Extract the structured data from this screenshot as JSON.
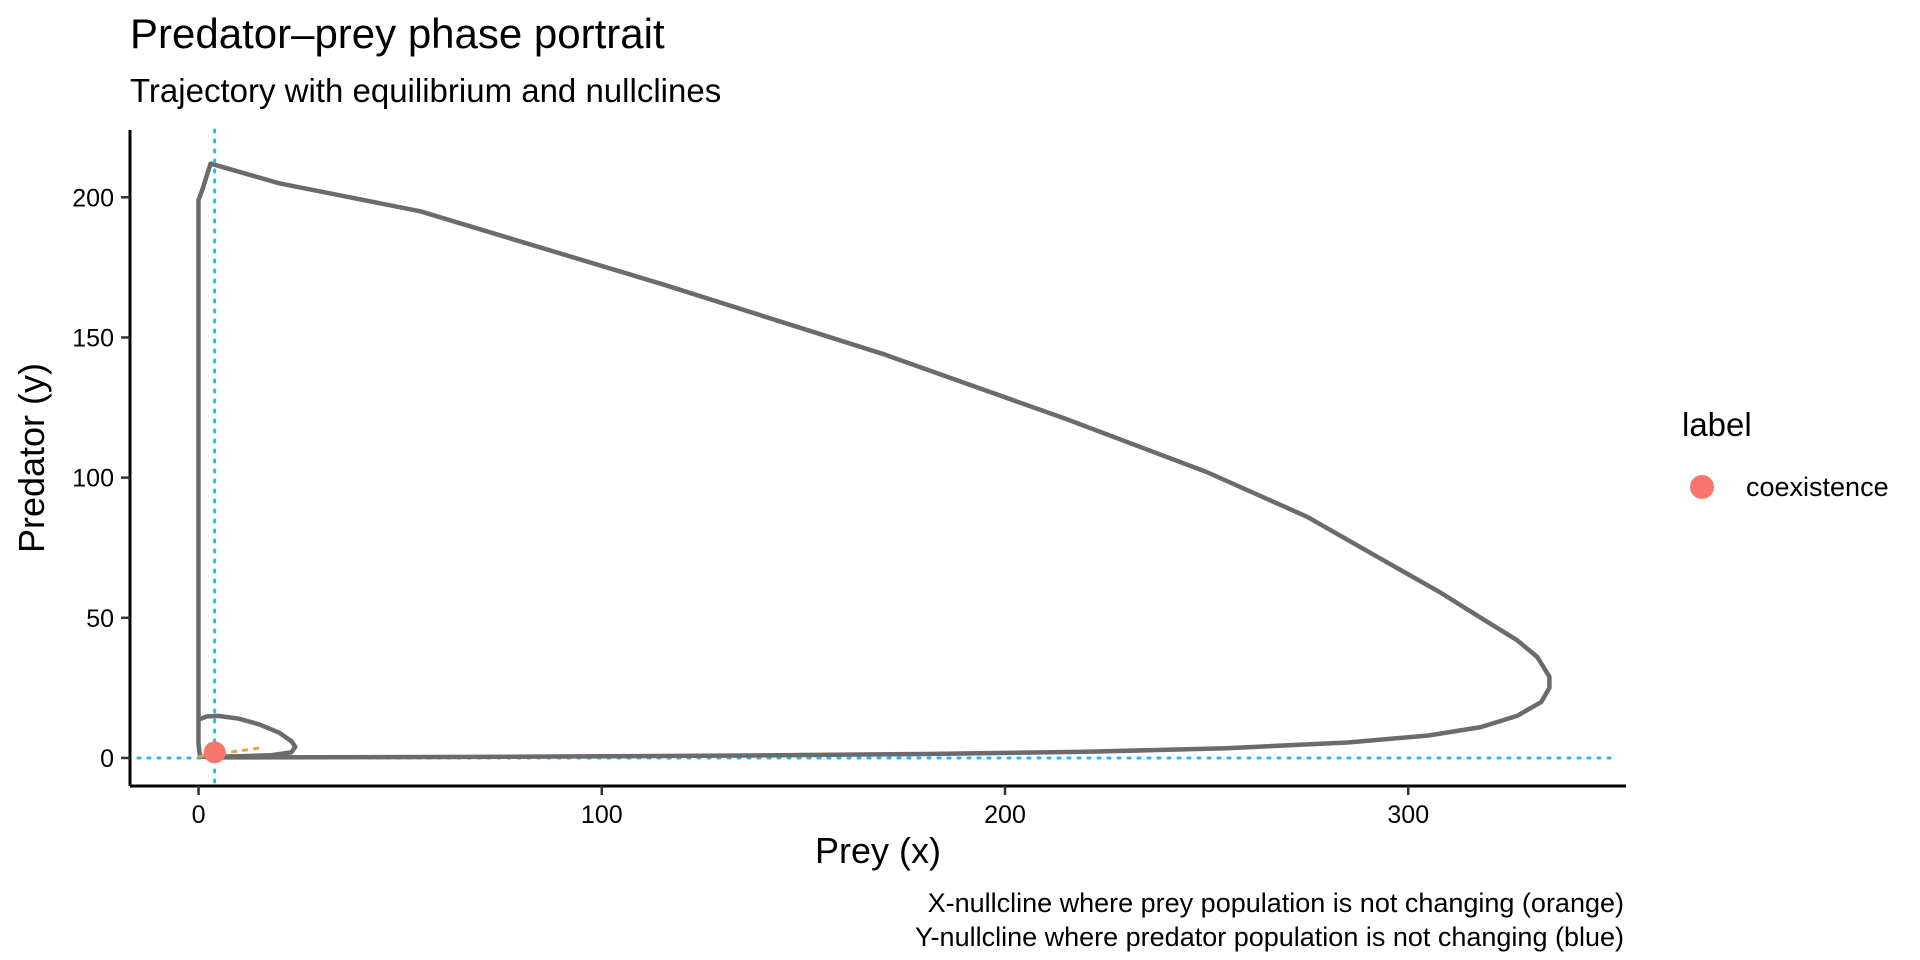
{
  "chart_data": {
    "type": "line",
    "title": "Predator–prey phase portrait",
    "subtitle": "Trajectory with equilibrium and nullclines",
    "xlabel": "Prey (x)",
    "ylabel": "Predator (y)",
    "xlim": [
      -17,
      354
    ],
    "ylim": [
      -10,
      224
    ],
    "x_ticks": [
      0,
      100,
      200,
      300
    ],
    "y_ticks": [
      0,
      50,
      100,
      150,
      200
    ],
    "grid": false,
    "legend": {
      "title": "label",
      "position": "right",
      "entries": [
        {
          "name": "coexistence",
          "color": "#F8766D"
        }
      ]
    },
    "caption": [
      "X-nullcline where prey population is not changing (orange)",
      "Y-nullcline where predator population is not changing (blue)"
    ],
    "trajectory": {
      "color": "#6b6b6b",
      "points": [
        [
          0.6,
          14
        ],
        [
          2,
          14.8
        ],
        [
          5,
          15
        ],
        [
          10,
          14
        ],
        [
          15,
          12
        ],
        [
          20,
          9
        ],
        [
          23,
          6
        ],
        [
          24,
          4
        ],
        [
          23,
          2
        ],
        [
          18,
          1
        ],
        [
          10,
          0.6
        ],
        [
          4,
          0.4
        ],
        [
          1,
          0.4
        ],
        [
          0.3,
          1
        ],
        [
          0,
          5
        ],
        [
          0,
          20
        ],
        [
          0,
          50
        ],
        [
          0,
          100
        ],
        [
          0,
          150
        ],
        [
          0,
          199
        ],
        [
          1,
          203
        ],
        [
          3,
          212
        ],
        [
          20,
          205
        ],
        [
          55,
          195
        ],
        [
          115,
          169
        ],
        [
          170,
          144
        ],
        [
          215,
          121
        ],
        [
          250,
          102
        ],
        [
          275,
          86
        ],
        [
          292,
          72
        ],
        [
          308,
          59
        ],
        [
          318,
          50
        ],
        [
          327,
          42
        ],
        [
          332,
          36
        ],
        [
          335,
          29
        ],
        [
          335,
          25
        ],
        [
          333,
          20
        ],
        [
          327,
          15
        ],
        [
          318,
          11
        ],
        [
          305,
          8
        ],
        [
          285,
          5.5
        ],
        [
          255,
          3.5
        ],
        [
          220,
          2.2
        ],
        [
          180,
          1.4
        ],
        [
          140,
          0.9
        ],
        [
          100,
          0.6
        ],
        [
          60,
          0.35
        ],
        [
          30,
          0.25
        ],
        [
          10,
          0.2
        ],
        [
          2,
          0.2
        ]
      ]
    },
    "equilibrium": {
      "label": "coexistence",
      "x": 4,
      "y": 2,
      "color": "#F8766D"
    },
    "x_nullcline": {
      "color": "#E8A33D",
      "points": [
        [
          0,
          0.5
        ],
        [
          15,
          3.5
        ]
      ]
    },
    "y_nullcline": {
      "color": "#29B6F6",
      "x": 4
    },
    "prey_zero_line": {
      "color": "#29B6F6",
      "y": 0
    }
  }
}
